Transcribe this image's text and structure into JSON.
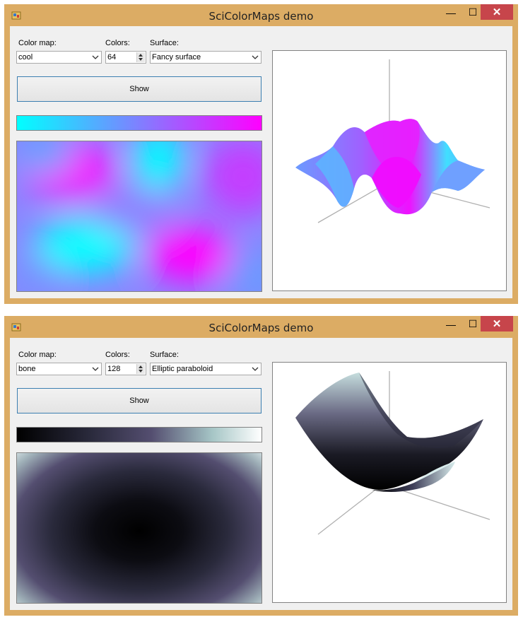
{
  "windows": [
    {
      "title": "SciColorMaps demo",
      "labels": {
        "colormap": "Color map:",
        "colors": "Colors:",
        "surface": "Surface:"
      },
      "colormap_value": "cool",
      "colors_value": "64",
      "surface_value": "Fancy surface",
      "show_label": "Show"
    },
    {
      "title": "SciColorMaps demo",
      "labels": {
        "colormap": "Color map:",
        "colors": "Colors:",
        "surface": "Surface:"
      },
      "colormap_value": "bone",
      "colors_value": "128",
      "surface_value": "Elliptic paraboloid",
      "show_label": "Show"
    }
  ],
  "titlebar_buttons": {
    "minimize": "—",
    "maximize": "☐",
    "close": "✕"
  },
  "colors": {
    "frame": "#dcac64",
    "close_button": "#c7454b",
    "cool_start": "#00ffff",
    "cool_end": "#ff00ff",
    "bone_start": "#000000",
    "bone_mid": "#544e70",
    "bone_end": "#ffffff"
  }
}
